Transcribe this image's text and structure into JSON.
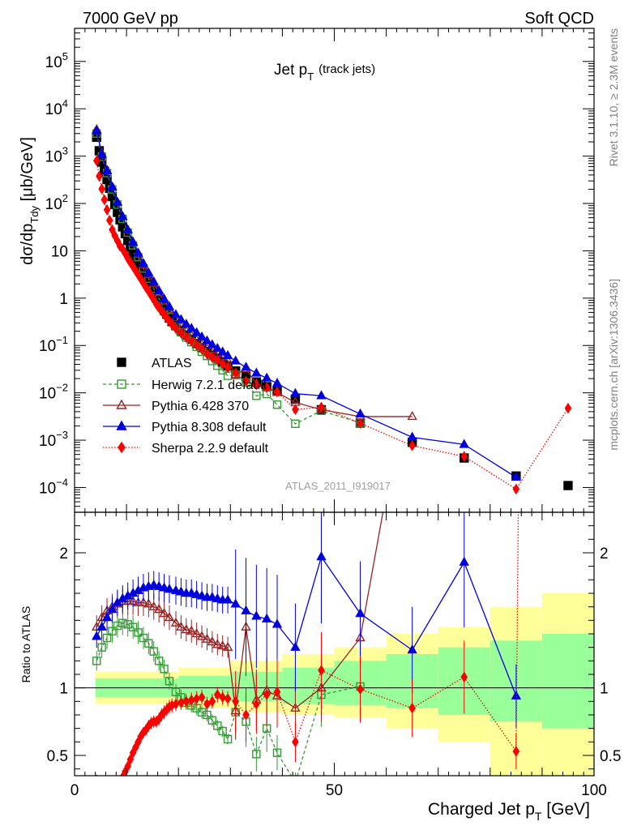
{
  "header": {
    "left": "7000 GeV pp",
    "right": "Soft QCD"
  },
  "side_labels": {
    "rivet": "Rivet 3.1.10, ≥ 2.3M events",
    "mcplots": "mcplots.cern.ch [arXiv:1306.3436]"
  },
  "plot_title": {
    "main": "Jet p",
    "sub": "T",
    "note": "(track jets)"
  },
  "watermark": "ATLAS_2011_I919017",
  "y_axis_label": {
    "main": "dσ/dp",
    "sub": "Tdy",
    "unit": " [μb/GeV]"
  },
  "ratio_axis_label": "Ratio to ATLAS",
  "x_axis_label": {
    "main": "Charged Jet p",
    "sub": "T",
    "unit": " [GeV]"
  },
  "colors": {
    "atlas": "#000000",
    "herwig": "#339933",
    "pythia6": "#992222",
    "pythia8": "#0000dd",
    "sherpa": "#ff0000",
    "band_inner": "#99ff99",
    "band_outer": "#ffff99"
  },
  "chart_data": {
    "type": "scatter",
    "main_panel": {
      "y_scale": "log",
      "ylim": [
        3e-05,
        500000
      ],
      "y_ticks": [
        {
          "v": 0.0001,
          "m": "10",
          "e": "−4"
        },
        {
          "v": 0.001,
          "m": "10",
          "e": "−3"
        },
        {
          "v": 0.01,
          "m": "10",
          "e": "−2"
        },
        {
          "v": 0.1,
          "m": "10",
          "e": "−1"
        },
        {
          "v": 1,
          "m": "1",
          "e": ""
        },
        {
          "v": 10,
          "m": "10",
          "e": ""
        },
        {
          "v": 100,
          "m": "10",
          "e": "2"
        },
        {
          "v": 1000,
          "m": "10",
          "e": "3"
        },
        {
          "v": 10000,
          "m": "10",
          "e": "4"
        },
        {
          "v": 100000,
          "m": "10",
          "e": "5"
        }
      ]
    },
    "ratio_panel": {
      "ylim": [
        0.35,
        2.3
      ],
      "y_ticks": [
        0.5,
        1,
        2
      ],
      "y_tick_labels": [
        "0.5",
        "1",
        "2"
      ]
    },
    "x_axis": {
      "xlim": [
        0,
        100
      ],
      "ticks": [
        0,
        50,
        100
      ],
      "tick_labels": [
        "0",
        "50",
        "100"
      ]
    },
    "legend": {
      "placement": "lower-left",
      "entries": [
        "ATLAS",
        "Herwig 7.2.1 default",
        "Pythia 6.428 370",
        "Pythia 8.308 default",
        "Sherpa 2.2.9 default"
      ]
    },
    "uncertainty_band": {
      "x_edges": [
        4,
        20,
        30,
        40,
        50,
        60,
        70,
        80,
        90,
        100
      ],
      "inner": [
        [
          0.93,
          1.07
        ],
        [
          0.92,
          1.09
        ],
        [
          0.9,
          1.12
        ],
        [
          0.88,
          1.15
        ],
        [
          0.87,
          1.2
        ],
        [
          0.85,
          1.25
        ],
        [
          0.8,
          1.3
        ],
        [
          0.75,
          1.35
        ],
        [
          0.7,
          1.4
        ]
      ],
      "outer": [
        [
          0.88,
          1.12
        ],
        [
          0.85,
          1.15
        ],
        [
          0.82,
          1.2
        ],
        [
          0.8,
          1.25
        ],
        [
          0.78,
          1.3
        ],
        [
          0.7,
          1.4
        ],
        [
          0.6,
          1.45
        ],
        [
          0.35,
          1.6
        ],
        [
          0.35,
          1.7
        ]
      ]
    },
    "series": [
      {
        "name": "ATLAS",
        "x": [
          4.25,
          4.75,
          5.25,
          5.75,
          6.25,
          6.75,
          7.25,
          7.75,
          8.25,
          8.75,
          9.25,
          9.75,
          10.25,
          10.75,
          11.25,
          11.75,
          12.25,
          12.75,
          13.25,
          13.75,
          14.25,
          14.75,
          15.25,
          15.75,
          16.25,
          16.75,
          17.25,
          17.75,
          18.25,
          18.75,
          19.5,
          20.5,
          21.5,
          22.5,
          23.5,
          24.5,
          25.5,
          26.5,
          27.5,
          28.5,
          29.5,
          31,
          33,
          35,
          37,
          39,
          42.5,
          47.5,
          55,
          65,
          75,
          85,
          95
        ],
        "y": [
          2500,
          1300,
          750,
          480,
          320,
          210,
          140,
          95,
          65,
          45,
          32,
          23,
          16.5,
          12,
          9,
          6.8,
          5.2,
          4,
          3.1,
          2.45,
          1.95,
          1.55,
          1.25,
          1.0,
          0.82,
          0.67,
          0.55,
          0.46,
          0.38,
          0.32,
          0.26,
          0.205,
          0.165,
          0.135,
          0.11,
          0.09,
          0.075,
          0.062,
          0.052,
          0.044,
          0.037,
          0.029,
          0.022,
          0.017,
          0.0135,
          0.0108,
          0.0074,
          0.0044,
          0.0023,
          0.0009,
          0.00042,
          0.000175,
          0.00011
        ]
      },
      {
        "name": "Herwig 7.2.1 default",
        "x": [
          4.25,
          5.25,
          6.25,
          7.25,
          8.25,
          9.25,
          10.25,
          11.25,
          12.25,
          13.25,
          14.25,
          15.25,
          16.25,
          17.25,
          18.25,
          19.5,
          20.5,
          21.5,
          22.5,
          23.5,
          24.5,
          25.5,
          26.5,
          27.5,
          28.5,
          29.5,
          31,
          33,
          35,
          37,
          39,
          42.5,
          47.5,
          55
        ],
        "ratio": [
          1.2,
          1.3,
          1.37,
          1.42,
          1.46,
          1.48,
          1.47,
          1.45,
          1.41,
          1.37,
          1.33,
          1.27,
          1.2,
          1.14,
          1.05,
          0.97,
          0.93,
          0.89,
          0.87,
          0.85,
          0.82,
          0.8,
          0.76,
          0.72,
          0.68,
          0.62,
          0.82,
          0.75,
          0.51,
          0.7,
          0.52,
          0.3,
          0.95,
          1.01
        ]
      },
      {
        "name": "Pythia 6.428 370",
        "x": [
          4.25,
          5.25,
          6.25,
          7.25,
          8.25,
          9.25,
          10.25,
          11.25,
          12.25,
          13.25,
          14.25,
          15.25,
          16.25,
          17.25,
          18.25,
          19.5,
          20.5,
          21.5,
          22.5,
          23.5,
          24.5,
          25.5,
          26.5,
          27.5,
          28.5,
          29.5,
          31,
          33,
          35,
          37,
          39,
          42.5,
          47.5,
          55,
          65
        ],
        "ratio": [
          1.45,
          1.52,
          1.57,
          1.6,
          1.62,
          1.64,
          1.64,
          1.64,
          1.63,
          1.63,
          1.62,
          1.6,
          1.58,
          1.55,
          1.52,
          1.48,
          1.45,
          1.43,
          1.42,
          1.4,
          1.38,
          1.36,
          1.34,
          1.32,
          1.31,
          1.3,
          0.83,
          1.45,
          0.91,
          0.98,
          0.94,
          0.85,
          1.0,
          1.37,
          3.5
        ]
      },
      {
        "name": "Pythia 8.308 default",
        "x": [
          4.25,
          5.25,
          6.25,
          7.25,
          8.25,
          9.25,
          10.25,
          11.25,
          12.25,
          13.25,
          14.25,
          15.25,
          16.25,
          17.25,
          18.25,
          19.5,
          20.5,
          21.5,
          22.5,
          23.5,
          24.5,
          25.5,
          26.5,
          27.5,
          28.5,
          29.5,
          31,
          33,
          35,
          37,
          39,
          42.5,
          47.5,
          55,
          65,
          75,
          85
        ],
        "ratio": [
          1.38,
          1.45,
          1.52,
          1.58,
          1.63,
          1.66,
          1.68,
          1.7,
          1.72,
          1.74,
          1.75,
          1.76,
          1.75,
          1.74,
          1.73,
          1.72,
          1.71,
          1.7,
          1.7,
          1.69,
          1.68,
          1.67,
          1.67,
          1.66,
          1.65,
          1.65,
          1.62,
          1.57,
          1.53,
          1.51,
          1.47,
          1.3,
          1.97,
          1.55,
          1.28,
          1.93,
          0.94
        ]
      },
      {
        "name": "Sherpa 2.2.9 default",
        "x": [
          4.25,
          4.75,
          5.25,
          5.75,
          6.25,
          6.75,
          7.25,
          7.75,
          8.25,
          8.75,
          9.25,
          9.75,
          10.25,
          10.75,
          11.25,
          11.75,
          12.25,
          12.75,
          13.25,
          13.75,
          14.25,
          14.75,
          15.25,
          15.75,
          16.25,
          16.75,
          17.25,
          17.75,
          18.25,
          18.75,
          19.5,
          20.5,
          21.5,
          22.5,
          23.5,
          24.5,
          25.5,
          26.5,
          27.5,
          28.5,
          29.5,
          31,
          33,
          35,
          37,
          39,
          42.5,
          47.5,
          55,
          65,
          75,
          85,
          95
        ],
        "ratio": [
          0.32,
          0.29,
          0.27,
          0.25,
          0.23,
          0.21,
          0.2,
          0.22,
          0.25,
          0.28,
          0.34,
          0.38,
          0.42,
          0.47,
          0.52,
          0.56,
          0.6,
          0.64,
          0.67,
          0.69,
          0.72,
          0.74,
          0.75,
          0.75,
          0.77,
          0.8,
          0.82,
          0.84,
          0.86,
          0.87,
          0.88,
          0.89,
          0.9,
          0.91,
          0.92,
          0.93,
          0.88,
          0.9,
          0.95,
          0.93,
          0.92,
          0.9,
          0.8,
          0.88,
          0.95,
          0.97,
          0.6,
          1.13,
          0.99,
          0.85,
          1.08,
          0.53,
          43
        ]
      }
    ]
  }
}
